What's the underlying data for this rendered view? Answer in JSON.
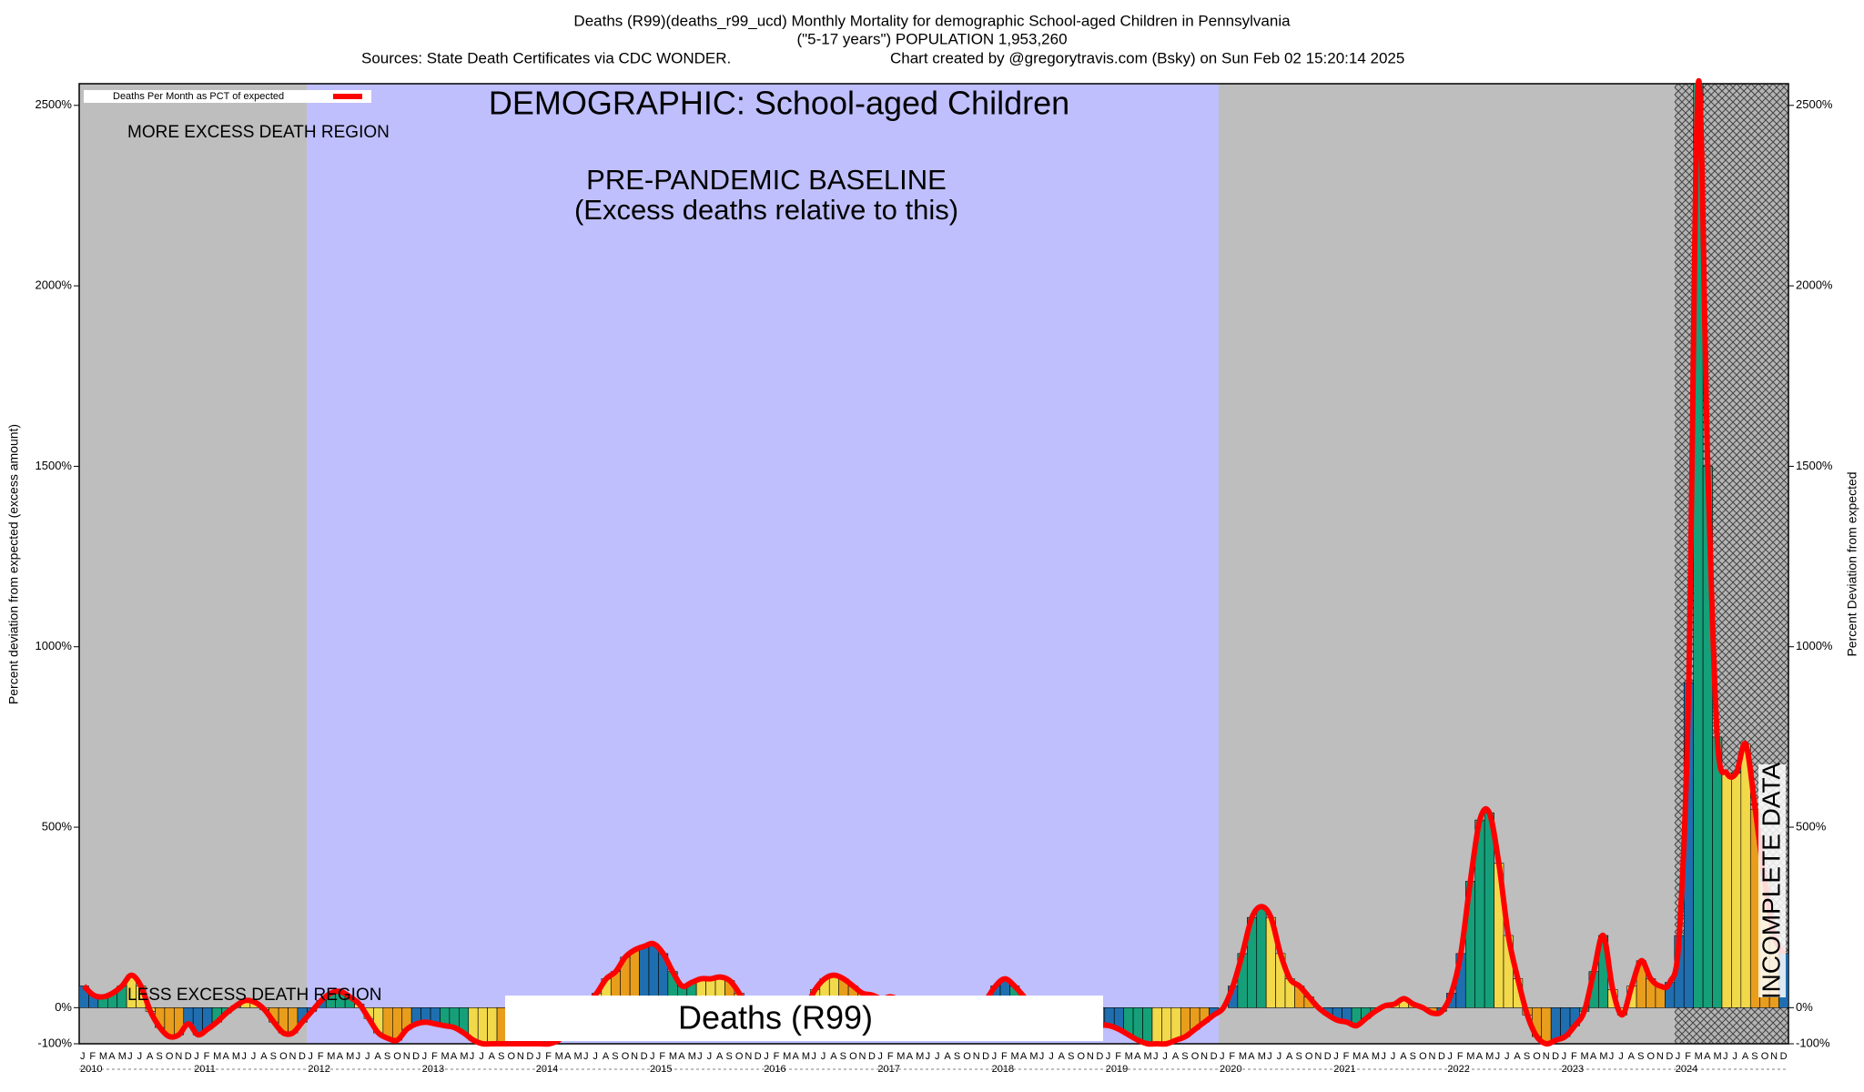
{
  "chart_data": {
    "type": "bar",
    "title": "Deaths (R99)(deaths_r99_ucd) Monthly Mortality for demographic School-aged Children in Pennsylvania",
    "subtitle": "(\"5-17 years\") POPULATION 1,953,260",
    "sources": "Sources: State Death Certificates via CDC WONDER.",
    "credit": "Chart created by @gregorytravis.com (Bsky) on Sun Feb 02 15:20:14 2025",
    "ylabel": "Percent deviation from expected (excess amount)",
    "y2label": "Percent Deviation from expected",
    "annotations": {
      "demographic": "DEMOGRAPHIC: School-aged Children",
      "more": "MORE EXCESS DEATH REGION",
      "less": "LESS EXCESS DEATH REGION",
      "baseline": "PRE-PANDEMIC BASELINE",
      "baseline_note": "(Excess deaths relative to this)",
      "cause": "Deaths (R99)",
      "incomplete": "INCOMPLETE DATA"
    },
    "years": [
      "2010",
      "2011",
      "2012",
      "2013",
      "2014",
      "2015",
      "2016",
      "2017",
      "2018",
      "2019",
      "2020",
      "2021",
      "2022",
      "2023",
      "2024"
    ],
    "months": [
      "J",
      "F",
      "M",
      "A",
      "M",
      "J",
      "J",
      "A",
      "S",
      "O",
      "N",
      "D"
    ],
    "month_colors": [
      "#1f6fb0",
      "#1f6fb0",
      "#15a07a",
      "#15a07a",
      "#15a07a",
      "#f2d94a",
      "#f2d94a",
      "#f2d94a",
      "#e89e1c",
      "#e89e1c",
      "#e89e1c",
      "#1f6fb0"
    ],
    "regions": [
      {
        "start": 0,
        "end": 24,
        "color": "#bebebe"
      },
      {
        "start": 24,
        "end": 120,
        "color": "#bfbffd"
      },
      {
        "start": 120,
        "end": 168,
        "color": "#bebebe"
      },
      {
        "start": 168,
        "end": 180,
        "color": "hatch"
      }
    ],
    "series": [
      {
        "name": "Deaths Per Month as PCT of expected",
        "color": "#ff0000",
        "values": [
          60,
          35,
          30,
          40,
          60,
          90,
          60,
          -10,
          -55,
          -80,
          -75,
          -45,
          -75,
          -60,
          -40,
          -15,
          5,
          20,
          15,
          -5,
          -40,
          -70,
          -70,
          -40,
          -10,
          20,
          40,
          45,
          30,
          10,
          -30,
          -70,
          -85,
          -90,
          -60,
          -45,
          -40,
          -45,
          -50,
          -55,
          -70,
          -90,
          -100,
          -100,
          -100,
          -100,
          -100,
          -100,
          -100,
          -100,
          -90,
          -60,
          -20,
          10,
          40,
          80,
          100,
          140,
          160,
          170,
          177,
          150,
          100,
          60,
          70,
          80,
          80,
          85,
          75,
          40,
          -10,
          -50,
          -70,
          -80,
          -60,
          -30,
          0,
          50,
          80,
          90,
          80,
          60,
          40,
          35,
          25,
          30,
          20,
          10,
          5,
          0,
          -20,
          -50,
          -70,
          -60,
          -30,
          20,
          60,
          80,
          60,
          30,
          0,
          -20,
          -40,
          -60,
          -70,
          -80,
          -70,
          -50,
          -50,
          -60,
          -75,
          -90,
          -100,
          -100,
          -100,
          -90,
          -80,
          -60,
          -40,
          -20,
          0,
          60,
          150,
          250,
          280,
          250,
          150,
          80,
          60,
          30,
          0,
          -20,
          -35,
          -40,
          -50,
          -30,
          -10,
          5,
          10,
          25,
          10,
          0,
          -15,
          -10,
          40,
          150,
          350,
          520,
          540,
          400,
          200,
          80,
          -20,
          -80,
          -100,
          -90,
          -80,
          -50,
          -10,
          100,
          200,
          50,
          -20,
          60,
          130,
          80,
          60,
          70,
          200,
          900,
          2560,
          1500,
          750,
          650,
          650,
          730,
          550,
          350,
          200,
          150
        ]
      }
    ],
    "ylim": [
      -100,
      2560
    ],
    "yticks": [
      {
        "value": -100,
        "label": "-100%"
      },
      {
        "value": 0,
        "label": "0%"
      },
      {
        "value": 500,
        "label": "500%"
      },
      {
        "value": 1000,
        "label": "1000%"
      },
      {
        "value": 1500,
        "label": "1500%"
      },
      {
        "value": 2000,
        "label": "2000%"
      },
      {
        "value": 2500,
        "label": "2500%"
      }
    ]
  }
}
